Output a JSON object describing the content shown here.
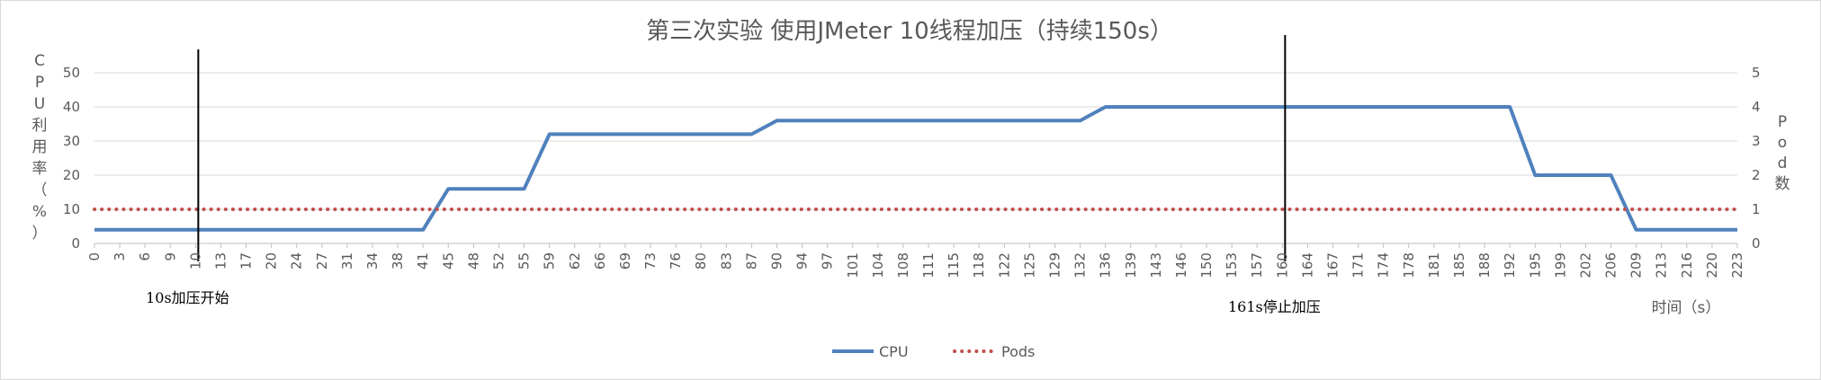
{
  "chart_data": {
    "type": "line",
    "title": "第三次实验 使用JMeter 10线程加压（持续150s）",
    "ylabel": "CPU利用率（%）",
    "y2label": "Pod数",
    "xlabel": "时间（s）",
    "ylim": [
      0,
      50
    ],
    "y2lim": [
      0,
      5
    ],
    "yticks": [
      "0",
      "10",
      "20",
      "30",
      "40",
      "50"
    ],
    "y2ticks": [
      "0",
      "1",
      "2",
      "3",
      "4",
      "5"
    ],
    "categories": [
      "0",
      "3",
      "6",
      "9",
      "10",
      "13",
      "17",
      "20",
      "24",
      "27",
      "31",
      "34",
      "38",
      "41",
      "45",
      "48",
      "52",
      "55",
      "59",
      "62",
      "66",
      "69",
      "73",
      "76",
      "80",
      "83",
      "87",
      "90",
      "94",
      "97",
      "101",
      "104",
      "108",
      "111",
      "115",
      "118",
      "122",
      "125",
      "129",
      "132",
      "136",
      "139",
      "143",
      "146",
      "150",
      "153",
      "157",
      "160",
      "164",
      "167",
      "171",
      "174",
      "178",
      "181",
      "185",
      "188",
      "192",
      "195",
      "199",
      "202",
      "206",
      "209",
      "213",
      "216",
      "220",
      "223"
    ],
    "series": [
      {
        "name": "CPU",
        "color": "#4f81bd",
        "axis": "left",
        "values": [
          4,
          4,
          4,
          4,
          4,
          4,
          4,
          4,
          4,
          4,
          4,
          4,
          4,
          4,
          16,
          16,
          16,
          16,
          32,
          32,
          32,
          32,
          32,
          32,
          32,
          32,
          32,
          36,
          36,
          36,
          36,
          36,
          36,
          36,
          36,
          36,
          36,
          36,
          36,
          36,
          40,
          40,
          40,
          40,
          40,
          40,
          40,
          40,
          40,
          40,
          40,
          40,
          40,
          40,
          40,
          40,
          40,
          20,
          20,
          20,
          20,
          4,
          4,
          4,
          4,
          4
        ]
      },
      {
        "name": "Pods",
        "color": "#c0504d",
        "axis": "right",
        "style": "dotted",
        "values": [
          1,
          1,
          1,
          1,
          1,
          1,
          1,
          1,
          1,
          1,
          1,
          1,
          1,
          1,
          1,
          1,
          1,
          1,
          1,
          1,
          1,
          1,
          1,
          1,
          1,
          1,
          1,
          1,
          1,
          1,
          1,
          1,
          1,
          1,
          1,
          1,
          1,
          1,
          1,
          1,
          1,
          1,
          1,
          1,
          1,
          1,
          1,
          1,
          1,
          1,
          1,
          1,
          1,
          1,
          1,
          1,
          1,
          1,
          1,
          1,
          1,
          1,
          1,
          1,
          1,
          1
        ]
      }
    ],
    "annotations": [
      {
        "text": "10s加压开始",
        "category": "10"
      },
      {
        "text": "161s停止加压",
        "category": "160"
      }
    ],
    "legend": "bottom",
    "grid": true
  }
}
